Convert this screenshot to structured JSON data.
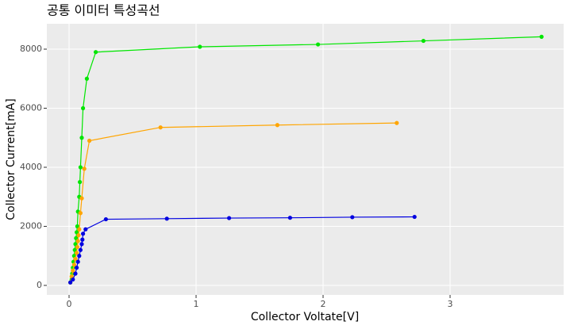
{
  "chart_data": {
    "type": "line",
    "title": "공통 이미터 특성곡선",
    "x_label": "Collector Voltate[V]",
    "y_label": "Collector Current[mA]",
    "xlim": [
      -0.175,
      3.894
    ],
    "ylim": [
      -322,
      8859
    ],
    "xticks": [
      0,
      1,
      2,
      3
    ],
    "yticks": [
      0,
      2000,
      4000,
      6000,
      8000
    ],
    "grid": true,
    "series": [
      {
        "color": "#00e600",
        "x": [
          0.01,
          0.02,
          0.025,
          0.03,
          0.035,
          0.04,
          0.045,
          0.05,
          0.055,
          0.06,
          0.065,
          0.07,
          0.08,
          0.085,
          0.09,
          0.1,
          0.11,
          0.14,
          0.21,
          1.03,
          1.96,
          2.79,
          3.72
        ],
        "values": [
          100,
          200,
          400,
          600,
          800,
          1000,
          1200,
          1400,
          1600,
          1800,
          2000,
          2500,
          3000,
          3500,
          4000,
          5000,
          6000,
          7000,
          7900,
          8080,
          8160,
          8280,
          8420
        ]
      },
      {
        "color": "#ffa500",
        "x": [
          0.01,
          0.02,
          0.03,
          0.04,
          0.05,
          0.06,
          0.065,
          0.07,
          0.075,
          0.08,
          0.09,
          0.1,
          0.12,
          0.16,
          0.72,
          1.64,
          2.58
        ],
        "values": [
          100,
          300,
          500,
          700,
          900,
          1100,
          1300,
          1500,
          1700,
          1900,
          2450,
          2950,
          3950,
          4900,
          5350,
          5430,
          5500
        ]
      },
      {
        "color": "#0000e0",
        "x": [
          0.01,
          0.03,
          0.05,
          0.06,
          0.07,
          0.08,
          0.09,
          0.1,
          0.105,
          0.11,
          0.13,
          0.29,
          0.77,
          1.26,
          1.74,
          2.23,
          2.72
        ],
        "values": [
          100,
          200,
          400,
          600,
          800,
          1000,
          1200,
          1400,
          1550,
          1750,
          1900,
          2240,
          2260,
          2280,
          2290,
          2310,
          2320
        ]
      }
    ]
  }
}
